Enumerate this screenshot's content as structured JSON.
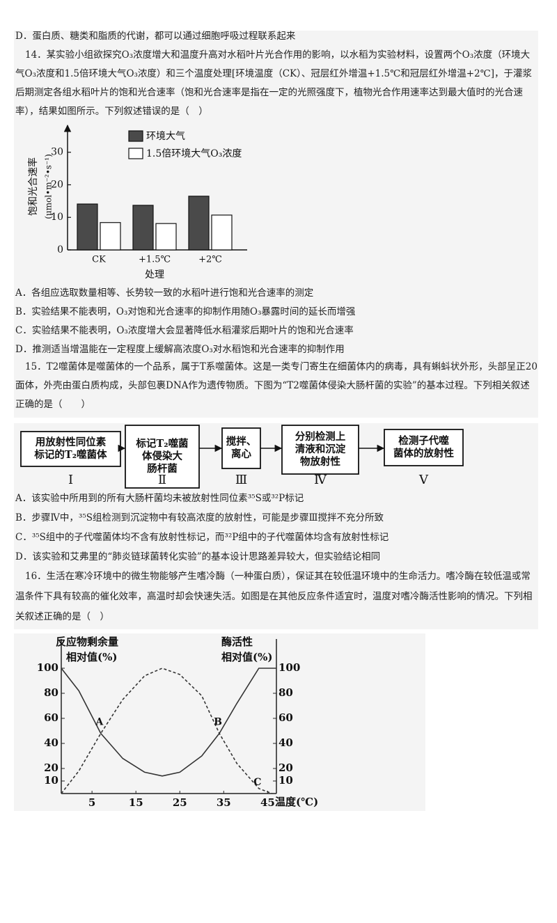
{
  "q13": {
    "option_d": "D．蛋白质、糖类和脂质的代谢，都可以通过细胞呼吸过程联系起来"
  },
  "q14": {
    "stem": "14．某实验小组欲探究O₃浓度增大和温度升高对水稻叶片光合作用的影响，以水稻为实验材料，设置两个O₃浓度（环境大气O₃浓度和1.5倍环境大气O₃浓度）和三个温度处理[环境温度（CK）、冠层红外增温+1.5℃和冠层红外增温+2℃]，于灌浆后期测定各组水稻叶片的饱和光合速率（饱和光合速率是指在一定的光照强度下，植物光合作用速率达到最大值时的光合速率），结果如图所示。下列叙述错误的是（　）",
    "chart": {
      "type": "bar",
      "ylabel": "饱和光合速率",
      "yunit": "(μmol•m⁻²•s⁻¹)",
      "xlabel": "处理",
      "categories": [
        "CK",
        "+1.5℃",
        "+2℃"
      ],
      "series": [
        {
          "name": "环境大气",
          "color": "#4a4a4a",
          "values": [
            14.1,
            13.7,
            16.5
          ]
        },
        {
          "name": "1.5倍环境大气O₃浓度",
          "color": "#ffffff",
          "values": [
            8.4,
            8.1,
            10.7
          ]
        }
      ],
      "ylim": [
        0,
        37
      ],
      "yticks": [
        0,
        10,
        20,
        30
      ]
    },
    "options": [
      "A．各组应选取数量相等、长势较一致的水稻叶进行饱和光合速率的测定",
      "B．实验结果不能表明，O₃对饱和光合速率的抑制作用随O₃暴露时间的延长而增强",
      "C．实验结果不能表明，O₃浓度增大会显著降低水稻灌浆后期叶片的饱和光合速率",
      "D．推测适当增温能在一定程度上缓解高浓度O₃对水稻饱和光合速率的抑制作用"
    ]
  },
  "q15": {
    "stem": "15．T2噬菌体是噬菌体的一个品系，属于T系噬菌体。这是一类专门寄生在细菌体内的病毒，具有蝌蚪状外形，头部呈正20面体，外壳由蛋白质构成，头部包裹DNA作为遗传物质。下图为“T2噬菌体侵染大肠杆菌的实验”的基本过程。下列相关叙述正确的是（　　）",
    "diagram": {
      "steps": [
        {
          "lines": [
            "用放射性同位素",
            "标记的T₂噬菌体"
          ],
          "numeral": "Ⅰ"
        },
        {
          "lines": [
            "标记T₂噬菌",
            "体侵染大",
            "肠杆菌"
          ],
          "numeral": "Ⅱ"
        },
        {
          "lines": [
            "搅拌、",
            "离心"
          ],
          "numeral": "Ⅲ"
        },
        {
          "lines": [
            "分别检测上",
            "清液和沉淀",
            "物放射性"
          ],
          "numeral": "Ⅳ"
        },
        {
          "lines": [
            "检测子代噬",
            "菌体的放射性"
          ],
          "numeral": "Ⅴ"
        }
      ]
    },
    "options": [
      "A．该实验中所用到的所有大肠杆菌均未被放射性同位素³⁵S或³²P标记",
      "B．步骤Ⅳ中，³⁵S组检测到沉淀物中有较高浓度的放射性，可能是步骤Ⅲ搅拌不充分所致",
      "C．³⁵S组中的子代噬菌体均不含有放射性标记，而³²P组中的子代噬菌体均含有放射性标记",
      "D．该实验和艾弗里的“肺炎链球菌转化实验”的基本设计思路差异较大，但实验结论相同"
    ]
  },
  "q16": {
    "stem": "16．生活在寒冷环境中的微生物能够产生嗜冷酶（一种蛋白质），保证其在较低温环境中的生命活力。嗜冷酶在较低温或常温条件下具有较高的催化效率，高温时却会快速失活。如图是在其他反应条件适宜时，温度对嗜冷酶活性影响的情况。下列相关叙述正确的是（　）",
    "chart": {
      "type": "line",
      "ylabel": [
        "反应物剩余量",
        "相对值(%)"
      ],
      "y2label": [
        "酶活性",
        "相对值(%)"
      ],
      "xlabel": "温度(℃)",
      "xlim": [
        -2,
        47
      ],
      "xticks": [
        5,
        15,
        25,
        35,
        45
      ],
      "ylim": [
        0,
        100
      ],
      "yticks": [
        100,
        80,
        60,
        40,
        20,
        10
      ],
      "y2lim": [
        0,
        100
      ],
      "y2ticks": [
        100,
        80,
        60,
        40,
        20,
        10
      ],
      "series": [
        {
          "style": "solid",
          "color": "#333333",
          "x": [
            -2,
            2,
            7,
            12,
            17,
            21,
            25,
            30,
            34,
            38,
            43,
            47
          ],
          "values": [
            100,
            82,
            48,
            28,
            17,
            14,
            17,
            30,
            48,
            72,
            100,
            100
          ]
        },
        {
          "style": "dashed",
          "axis": "y2",
          "color": "#333333",
          "x": [
            -2,
            2,
            7,
            12,
            17,
            21,
            25,
            30,
            34,
            38,
            43,
            46
          ],
          "values": [
            0,
            18,
            48,
            75,
            94,
            100,
            95,
            78,
            48,
            24,
            4,
            0
          ]
        }
      ],
      "annotations": [
        {
          "text": "A",
          "x": 7,
          "y": 48
        },
        {
          "text": "B",
          "x": 34,
          "y": 48
        },
        {
          "text": "C",
          "x": 43,
          "y": 0
        }
      ]
    }
  }
}
